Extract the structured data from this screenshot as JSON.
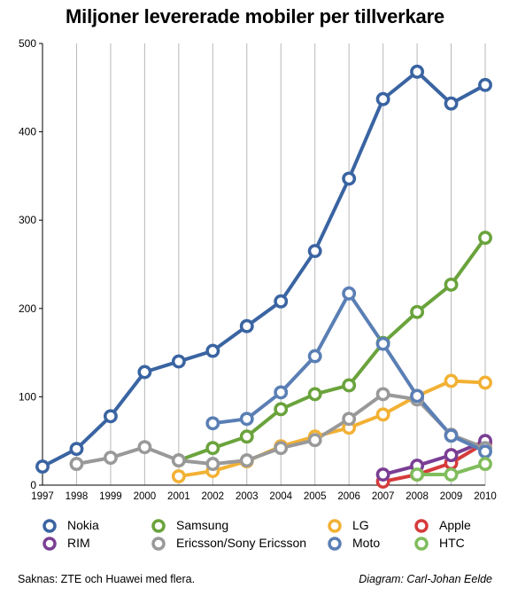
{
  "chart_data": {
    "type": "line",
    "title": "Miljoner levererade mobiler per tillverkare",
    "x": [
      "1997",
      "1998",
      "1999",
      "2000",
      "2001",
      "2002",
      "2003",
      "2004",
      "2005",
      "2006",
      "2007",
      "2008",
      "2009",
      "2010"
    ],
    "ylim": [
      0,
      500
    ],
    "yticks": [
      "0",
      "100",
      "200",
      "300",
      "400",
      "500"
    ],
    "grid": "vertical",
    "legend_position": "bottom",
    "series": [
      {
        "name": "Nokia",
        "color": "#3a64a2",
        "values": [
          21,
          41,
          78,
          128,
          140,
          152,
          180,
          208,
          265,
          347,
          437,
          468,
          432,
          453
        ]
      },
      {
        "name": "Samsung",
        "color": "#6aa33c",
        "values": [
          null,
          null,
          null,
          null,
          28,
          42,
          55,
          86,
          103,
          113,
          161,
          196,
          227,
          280
        ]
      },
      {
        "name": "LG",
        "color": "#f2b134",
        "values": [
          null,
          null,
          null,
          null,
          10,
          16,
          27,
          44,
          55,
          65,
          80,
          101,
          118,
          116
        ]
      },
      {
        "name": "Apple",
        "color": "#d53a3a",
        "values": [
          null,
          null,
          null,
          null,
          null,
          null,
          null,
          null,
          null,
          null,
          4,
          12,
          25,
          48
        ]
      },
      {
        "name": "RIM",
        "color": "#7a3e94",
        "values": [
          null,
          null,
          null,
          null,
          null,
          null,
          null,
          null,
          null,
          null,
          12,
          22,
          34,
          50
        ]
      },
      {
        "name": "Ericsson/Sony Ericsson",
        "color": "#999999",
        "values": [
          null,
          24,
          31,
          43,
          28,
          24,
          28,
          42,
          51,
          75,
          103,
          97,
          57,
          42
        ]
      },
      {
        "name": "Moto",
        "color": "#5a7fb5",
        "values": [
          null,
          null,
          null,
          null,
          null,
          70,
          75,
          105,
          146,
          217,
          160,
          101,
          56,
          38
        ]
      },
      {
        "name": "HTC",
        "color": "#80bd5c",
        "values": [
          null,
          null,
          null,
          null,
          null,
          null,
          null,
          null,
          null,
          null,
          null,
          12,
          12,
          24
        ]
      }
    ]
  },
  "legend": [
    {
      "label": "Nokia",
      "color": "#3a64a2"
    },
    {
      "label": "Samsung",
      "color": "#6aa33c"
    },
    {
      "label": "LG",
      "color": "#f2b134"
    },
    {
      "label": "Apple",
      "color": "#d53a3a"
    },
    {
      "label": "RIM",
      "color": "#7a3e94"
    },
    {
      "label": "Ericsson/Sony Ericsson",
      "color": "#999999"
    },
    {
      "label": "Moto",
      "color": "#5a7fb5"
    },
    {
      "label": "HTC",
      "color": "#80bd5c"
    }
  ],
  "footer": {
    "note": "Saknas: ZTE och Huawei med flera.",
    "credit": "Diagram: Carl-Johan Eelde"
  }
}
